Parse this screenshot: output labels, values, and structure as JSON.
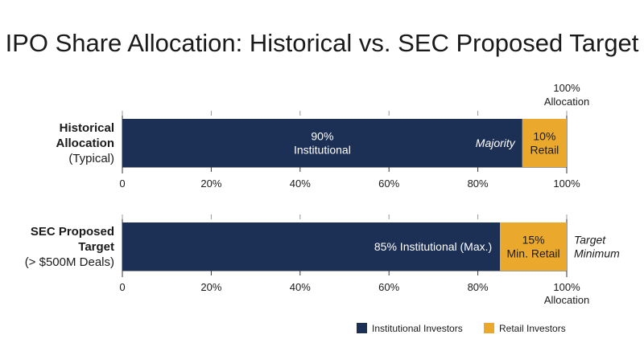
{
  "chart_data": {
    "type": "bar",
    "orientation": "horizontal",
    "stacked": true,
    "title": "IPO Share Allocation: Historical vs. SEC Proposed Target",
    "xlim": [
      0,
      100
    ],
    "x_ticks": [
      "0",
      "20%",
      "40%",
      "60%",
      "80%",
      "100%"
    ],
    "grid": false,
    "legend_position": "bottom-right",
    "colors": {
      "institutional": "#1c2f55",
      "retail": "#eaa92c"
    },
    "series": [
      {
        "name": "Institutional Investors",
        "values": [
          90,
          85
        ]
      },
      {
        "name": "Retail Investors",
        "values": [
          10,
          15
        ]
      }
    ],
    "rows": [
      {
        "label_bold_lines": [
          "Historical",
          "Allocation"
        ],
        "label_sub": "(Typical)",
        "institutional": 90,
        "retail": 10,
        "institutional_label_lines": [
          "90%",
          "Institutional"
        ],
        "retail_label_lines": [
          "10%",
          "Retail"
        ],
        "note_inside_lines": [
          "Majority"
        ],
        "note_right_lines": [],
        "top_annotation_lines": [
          "100%",
          "Allocation"
        ],
        "bottom_annotation_lines": []
      },
      {
        "label_bold_lines": [
          "SEC Proposed",
          "Target"
        ],
        "label_sub": "(> $500M Deals)",
        "institutional": 85,
        "retail": 15,
        "institutional_label_lines": [
          "85% Institutional (Max.)"
        ],
        "retail_label_lines": [
          "15%",
          "Min. Retail"
        ],
        "note_inside_lines": [],
        "note_right_lines": [
          "Target",
          "Minimum"
        ],
        "top_annotation_lines": [],
        "bottom_annotation_lines": [
          "Allocation"
        ]
      }
    ]
  }
}
